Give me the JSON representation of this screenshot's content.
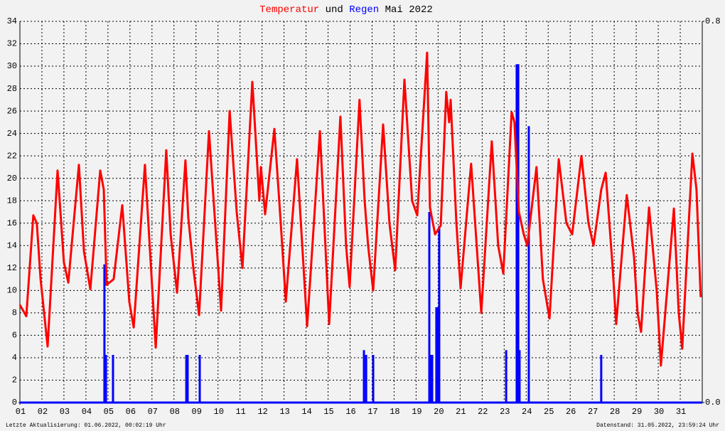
{
  "chart_data": {
    "type": "line",
    "title_join": "und",
    "title_suffix": "Mai 2022",
    "footer_left": "Letzte Aktualisierung: 01.06.2022, 00:02:19 Uhr",
    "footer_right": "Datenstand: 31.05.2022, 23:59:24 Uhr",
    "xlim": [
      1,
      32
    ],
    "xticks": [
      {
        "value": 1,
        "label": "01"
      },
      {
        "value": 2,
        "label": "02"
      },
      {
        "value": 3,
        "label": "03"
      },
      {
        "value": 4,
        "label": "04"
      },
      {
        "value": 5,
        "label": "05"
      },
      {
        "value": 6,
        "label": "06"
      },
      {
        "value": 7,
        "label": "07"
      },
      {
        "value": 8,
        "label": "08"
      },
      {
        "value": 9,
        "label": "09"
      },
      10,
      11,
      12,
      13,
      14,
      15,
      16,
      17,
      18,
      19,
      20,
      21,
      22,
      23,
      24,
      25,
      26,
      27,
      28,
      29,
      30,
      31
    ],
    "ylim": [
      0,
      34
    ],
    "yticks": [
      0,
      2,
      4,
      6,
      8,
      10,
      12,
      14,
      16,
      18,
      20,
      22,
      24,
      26,
      28,
      30,
      32,
      34
    ],
    "y2lim": [
      0,
      0.8
    ],
    "y2ticks": [
      {
        "value": 0,
        "label": "0.0"
      },
      0.8
    ],
    "grid": true,
    "series": [
      {
        "name": "Temperatur",
        "color": "#ff0000",
        "type": "line",
        "x": [
          1.0,
          1.29,
          1.61,
          1.77,
          1.94,
          2.26,
          2.71,
          3.0,
          3.2,
          3.68,
          3.91,
          4.2,
          4.65,
          4.81,
          4.94,
          5.26,
          5.65,
          5.97,
          6.17,
          6.68,
          7.17,
          7.65,
          7.85,
          8.14,
          8.52,
          8.65,
          8.88,
          9.14,
          9.59,
          10.14,
          10.53,
          10.85,
          11.11,
          11.56,
          11.88,
          11.95,
          12.14,
          12.56,
          12.85,
          13.08,
          13.59,
          14.05,
          14.63,
          15.05,
          15.56,
          15.82,
          15.98,
          16.43,
          16.66,
          16.82,
          17.05,
          17.5,
          17.79,
          18.05,
          18.47,
          18.82,
          19.05,
          19.5,
          19.63,
          19.86,
          20.12,
          20.37,
          20.5,
          20.57,
          20.83,
          21.02,
          21.5,
          21.96,
          22.44,
          22.73,
          22.96,
          23.34,
          23.47,
          23.67,
          23.89,
          24.05,
          24.47,
          24.76,
          25.06,
          25.48,
          25.83,
          26.09,
          26.51,
          26.83,
          27.06,
          27.41,
          27.61,
          27.93,
          28.09,
          28.57,
          28.9,
          29.06,
          29.22,
          29.58,
          29.93,
          30.12,
          30.71,
          30.93,
          31.09,
          31.55,
          31.74,
          31.93
        ],
        "values": [
          8.7,
          7.7,
          16.7,
          16,
          11,
          5,
          20.7,
          12.5,
          10.7,
          21.2,
          13.5,
          10.1,
          20.7,
          19,
          10.5,
          11,
          17.6,
          9,
          6.7,
          21.2,
          4.9,
          22.5,
          15,
          9.8,
          21.6,
          16.5,
          12,
          7.8,
          24.2,
          8.2,
          26,
          17,
          12,
          28.6,
          18,
          21,
          16.8,
          24.4,
          16,
          9,
          21.7,
          6.8,
          24.2,
          7,
          25.5,
          14,
          10.3,
          27,
          18,
          14,
          10,
          24.8,
          16,
          11.8,
          28.8,
          18,
          16.7,
          31.2,
          17.4,
          15,
          15.8,
          27.7,
          25,
          27,
          16,
          10.2,
          21.3,
          8,
          23.3,
          14,
          11.5,
          25.9,
          25,
          17,
          15,
          14,
          21,
          11,
          7.5,
          21.7,
          16,
          15,
          22,
          16,
          14,
          19,
          20.5,
          12,
          7,
          18.5,
          13,
          8,
          6.3,
          17.4,
          10,
          3.3,
          17.3,
          8,
          4.8,
          22.2,
          19,
          9.4
        ]
      },
      {
        "name": "Regen",
        "color": "#0000ff",
        "type": "bar",
        "axis": "y2",
        "x": [
          4.84,
          4.91,
          5.23,
          8.56,
          8.62,
          9.17,
          16.63,
          16.73,
          17.05,
          19.6,
          19.66,
          19.73,
          19.92,
          19.99,
          20.05,
          23.09,
          23.57,
          23.64,
          23.7,
          24.12,
          27.41
        ],
        "values": [
          0.29,
          0.1,
          0.1,
          0.1,
          0.1,
          0.1,
          0.11,
          0.1,
          0.1,
          0.4,
          0.1,
          0.1,
          0.2,
          0.2,
          0.37,
          0.11,
          0.71,
          0.71,
          0.11,
          0.58,
          0.1
        ]
      }
    ]
  }
}
